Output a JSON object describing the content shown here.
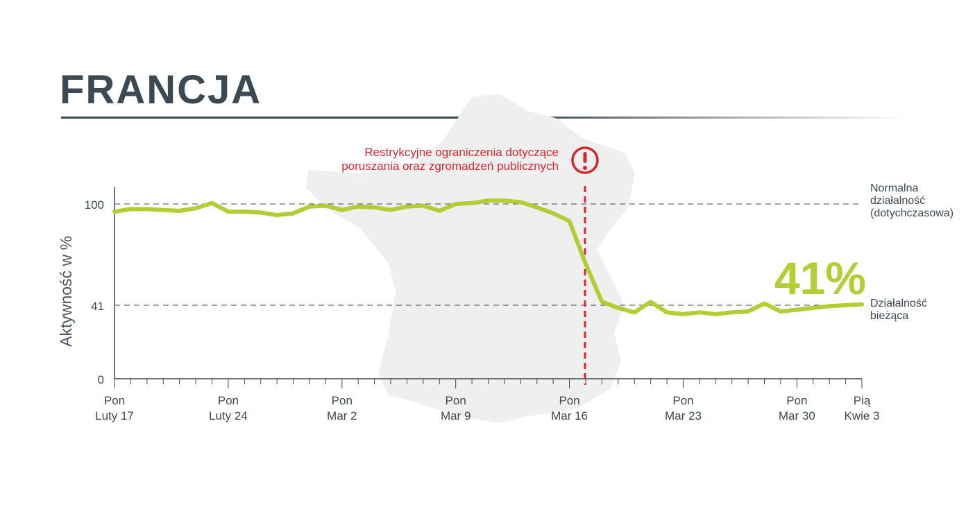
{
  "title": "FRANCJA",
  "colors": {
    "line": "#b5cc34",
    "annotation": "#d7262e",
    "text": "#3c4852",
    "map": "#efefef"
  },
  "chart_data": {
    "type": "line",
    "title": "FRANCJA",
    "ylabel": "Aktywność w %",
    "xlabel": "",
    "ylim": [
      0,
      100
    ],
    "yticks": [
      0,
      41,
      100
    ],
    "grid": false,
    "x_start": "Luty 17",
    "x_end": "Kwie 3",
    "xticks": [
      {
        "day": 0,
        "line1": "Pon",
        "line2": "Luty 17"
      },
      {
        "day": 7,
        "line1": "Pon",
        "line2": "Luty 24"
      },
      {
        "day": 14,
        "line1": "Pon",
        "line2": "Mar 2"
      },
      {
        "day": 21,
        "line1": "Pon",
        "line2": "Mar 9"
      },
      {
        "day": 28,
        "line1": "Pon",
        "line2": "Mar 16"
      },
      {
        "day": 35,
        "line1": "Pon",
        "line2": "Mar 23"
      },
      {
        "day": 42,
        "line1": "Pon",
        "line2": "Mar 30"
      },
      {
        "day": 46,
        "line1": "Pią",
        "line2": "Kwie 3"
      }
    ],
    "series": [
      {
        "name": "Aktywność",
        "values": [
          95.5,
          97,
          97,
          96.5,
          96,
          97.5,
          100.5,
          95.5,
          95.5,
          95,
          93.5,
          94.5,
          98.5,
          99,
          96.5,
          98.5,
          98,
          96.5,
          98.5,
          99,
          96,
          100,
          100.5,
          102,
          102,
          101,
          98,
          94.5,
          90,
          65,
          43,
          39.5,
          37,
          43,
          37,
          36,
          37,
          36,
          37,
          37.5,
          42,
          37.5,
          38.5,
          39.5,
          40.5,
          41,
          41.5
        ]
      }
    ],
    "reference_lines": [
      {
        "value": 100,
        "label_lines": [
          "Normalna",
          "działalność",
          "(dotychczasowa)"
        ]
      },
      {
        "value": 41,
        "label_lines": [
          "Działalność",
          "bieżąca"
        ]
      }
    ],
    "event": {
      "day": 29,
      "icon": "exclamation-circle-icon",
      "label_lines": [
        "Restrykcyjne ograniczenia dotyczące",
        "poruszania oraz zgromadzeń publicznych"
      ]
    },
    "callout": "41%"
  }
}
